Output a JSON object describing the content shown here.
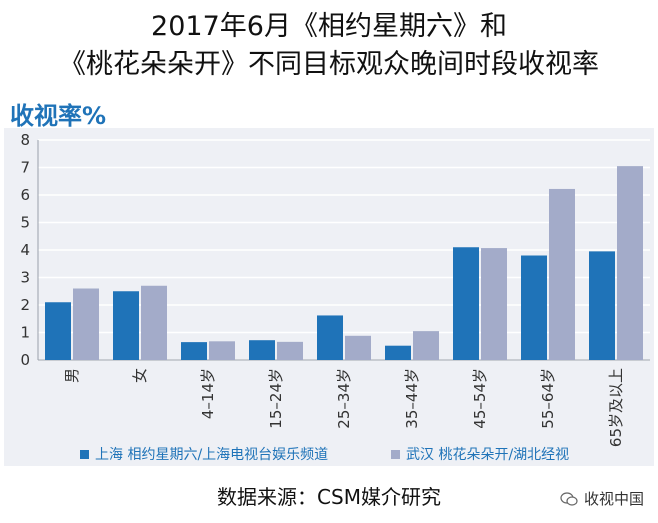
{
  "title": {
    "line1": "2017年6月《相约星期六》和",
    "line2": "《桃花朵朵开》不同目标观众晚间时段收视率"
  },
  "source": "数据来源：CSM媒介研究",
  "watermark": "收视中国",
  "chart_data": {
    "type": "bar",
    "ylabel": "收视率%",
    "ylim": [
      0,
      8
    ],
    "yticks": [
      0,
      1,
      2,
      3,
      4,
      5,
      6,
      7,
      8
    ],
    "grid": true,
    "legend_position": "bottom",
    "categories": [
      "男",
      "女",
      "4–14岁",
      "15–24岁",
      "25–34岁",
      "35–44岁",
      "45–54岁",
      "55–64岁",
      "65岁及以上"
    ],
    "series": [
      {
        "name": "上海 相约星期六/上海电视台娱乐频道",
        "color": "#1f73b8",
        "values": [
          2.1,
          2.5,
          0.65,
          0.72,
          1.62,
          0.52,
          4.1,
          3.8,
          3.95
        ]
      },
      {
        "name": "武汉 桃花朵朵开/湖北经视",
        "color": "#a3abc9",
        "values": [
          2.6,
          2.7,
          0.68,
          0.66,
          0.88,
          1.05,
          4.07,
          6.22,
          7.05
        ]
      }
    ]
  }
}
